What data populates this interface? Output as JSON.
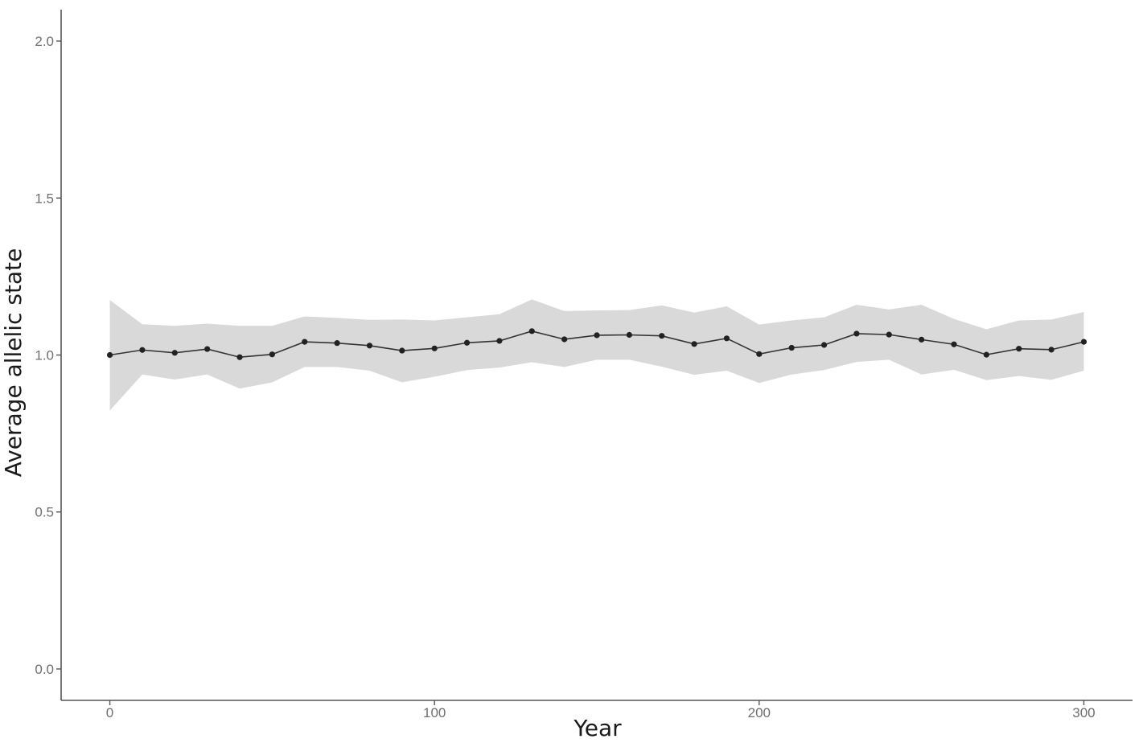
{
  "chart_data": {
    "type": "line",
    "title": "",
    "xlabel": "Year",
    "ylabel": "Average allelic state",
    "xlim": [
      -15,
      315
    ],
    "ylim": [
      -0.1,
      2.1
    ],
    "xticks": [
      0,
      100,
      200,
      300
    ],
    "xtick_labels": [
      "0",
      "100",
      "200",
      "300"
    ],
    "yticks": [
      0.0,
      0.5,
      1.0,
      1.5,
      2.0
    ],
    "ytick_labels": [
      "0.0",
      "0.5",
      "1.0",
      "1.5",
      "2.0"
    ],
    "grid": false,
    "legend": "none",
    "colors": {
      "line": "#333333",
      "point": "#222222",
      "band": "#d9d9d9",
      "axis": "#555555"
    },
    "series": [
      {
        "x": [
          0,
          10,
          20,
          30,
          40,
          50,
          60,
          70,
          80,
          90,
          100,
          110,
          120,
          130,
          140,
          150,
          160,
          170,
          180,
          190,
          200,
          210,
          220,
          230,
          240,
          250,
          260,
          270,
          280,
          290,
          300
        ],
        "y": [
          1.0,
          1.016,
          1.007,
          1.019,
          0.993,
          1.002,
          1.042,
          1.038,
          1.03,
          1.014,
          1.021,
          1.039,
          1.045,
          1.076,
          1.05,
          1.063,
          1.064,
          1.061,
          1.035,
          1.053,
          1.003,
          1.023,
          1.032,
          1.068,
          1.065,
          1.049,
          1.034,
          1.001,
          1.02,
          1.017,
          1.042
        ],
        "upper": [
          1.175,
          1.098,
          1.093,
          1.1,
          1.093,
          1.093,
          1.123,
          1.118,
          1.112,
          1.113,
          1.11,
          1.12,
          1.13,
          1.177,
          1.14,
          1.142,
          1.143,
          1.158,
          1.135,
          1.155,
          1.097,
          1.11,
          1.12,
          1.16,
          1.145,
          1.16,
          1.115,
          1.082,
          1.11,
          1.113,
          1.137
        ],
        "lower": [
          0.823,
          0.938,
          0.922,
          0.938,
          0.893,
          0.913,
          0.962,
          0.962,
          0.95,
          0.913,
          0.931,
          0.952,
          0.96,
          0.977,
          0.962,
          0.985,
          0.985,
          0.963,
          0.937,
          0.95,
          0.911,
          0.938,
          0.952,
          0.978,
          0.985,
          0.938,
          0.953,
          0.92,
          0.933,
          0.921,
          0.95
        ]
      }
    ]
  }
}
